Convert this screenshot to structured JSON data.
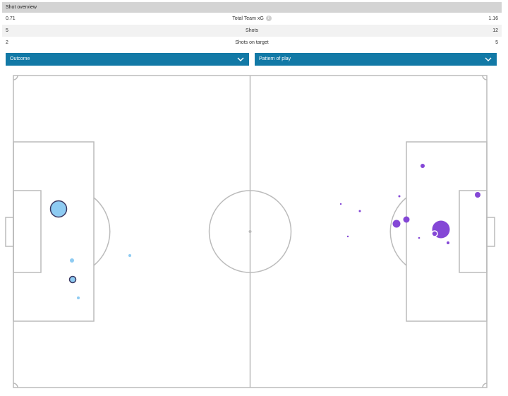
{
  "panel": {
    "title": "Shot overview",
    "stats": [
      {
        "label": "Total Team xG",
        "left": "0.71",
        "right": "1.16",
        "info": true
      },
      {
        "label": "Shots",
        "left": "5",
        "right": "12",
        "info": false
      },
      {
        "label": "Shots on target",
        "left": "2",
        "right": "5",
        "info": false
      }
    ]
  },
  "filters": {
    "outcome_label": "Outcome",
    "pattern_label": "Pattern of play"
  },
  "colors": {
    "home": "#8ecbf2",
    "away": "#8447d6",
    "dropdown": "#1279a6",
    "pitch_lines": "#bbbbbb"
  },
  "icons": [
    "info-icon",
    "chevron-down-icon"
  ]
}
